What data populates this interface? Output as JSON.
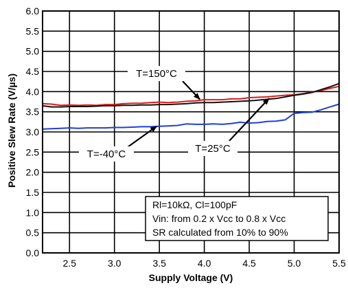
{
  "chart_data": {
    "type": "line",
    "title": "",
    "xlabel": "Supply Voltage (V)",
    "ylabel": "Positive Slew Rate (V/µs)",
    "xlim": [
      2.2,
      5.5
    ],
    "ylim": [
      0.0,
      6.0
    ],
    "grid": true,
    "x_ticks": [
      2.5,
      3.0,
      3.5,
      4.0,
      4.5,
      5.0,
      5.5
    ],
    "x_tick_labels": [
      "2.5",
      "3.0",
      "3.5",
      "4.0",
      "4.5",
      "5.0",
      "5.5"
    ],
    "y_ticks": [
      0.0,
      0.5,
      1.0,
      1.5,
      2.0,
      2.5,
      3.0,
      3.5,
      4.0,
      4.5,
      5.0,
      5.5,
      6.0
    ],
    "y_tick_labels": [
      "0.0",
      "0.5",
      "1.0",
      "1.5",
      "2.0",
      "2.5",
      "3.0",
      "3.5",
      "4.0",
      "4.5",
      "5.0",
      "5.5",
      "6.0"
    ],
    "series": [
      {
        "name": "T=150°C",
        "color": "#e0191b",
        "x": [
          2.2,
          2.3,
          2.4,
          2.5,
          2.6,
          2.7,
          2.8,
          2.9,
          3.0,
          3.1,
          3.2,
          3.3,
          3.4,
          3.5,
          3.6,
          3.7,
          3.8,
          3.9,
          4.0,
          4.1,
          4.2,
          4.3,
          4.4,
          4.5,
          4.6,
          4.7,
          4.8,
          4.9,
          5.0,
          5.1,
          5.2,
          5.3,
          5.4,
          5.5
        ],
        "y": [
          3.7,
          3.69,
          3.66,
          3.67,
          3.66,
          3.67,
          3.66,
          3.68,
          3.68,
          3.7,
          3.71,
          3.71,
          3.73,
          3.74,
          3.73,
          3.74,
          3.76,
          3.77,
          3.8,
          3.8,
          3.8,
          3.82,
          3.82,
          3.85,
          3.86,
          3.87,
          3.89,
          3.91,
          3.92,
          3.95,
          3.99,
          4.03,
          4.08,
          4.13
        ]
      },
      {
        "name": "T=25°C",
        "color": "#111111",
        "x": [
          2.2,
          2.3,
          2.4,
          2.5,
          2.6,
          2.7,
          2.8,
          2.9,
          3.0,
          3.1,
          3.2,
          3.3,
          3.4,
          3.5,
          3.6,
          3.7,
          3.8,
          3.9,
          4.0,
          4.1,
          4.2,
          4.3,
          4.4,
          4.5,
          4.6,
          4.7,
          4.8,
          4.9,
          5.0,
          5.1,
          5.2,
          5.3,
          5.4,
          5.5
        ],
        "y": [
          3.65,
          3.62,
          3.62,
          3.63,
          3.63,
          3.63,
          3.64,
          3.65,
          3.65,
          3.66,
          3.66,
          3.67,
          3.67,
          3.68,
          3.68,
          3.69,
          3.7,
          3.72,
          3.73,
          3.73,
          3.74,
          3.75,
          3.76,
          3.77,
          3.79,
          3.81,
          3.83,
          3.87,
          3.91,
          3.94,
          3.98,
          4.05,
          4.12,
          4.2
        ]
      },
      {
        "name": "T=-40°C",
        "color": "#1e3fd6",
        "x": [
          2.2,
          2.3,
          2.4,
          2.5,
          2.6,
          2.7,
          2.8,
          2.9,
          3.0,
          3.1,
          3.2,
          3.3,
          3.4,
          3.5,
          3.6,
          3.7,
          3.8,
          3.9,
          4.0,
          4.1,
          4.2,
          4.3,
          4.4,
          4.5,
          4.6,
          4.7,
          4.8,
          4.9,
          5.0,
          5.1,
          5.2,
          5.3,
          5.4,
          5.5
        ],
        "y": [
          3.07,
          3.08,
          3.09,
          3.1,
          3.09,
          3.1,
          3.1,
          3.1,
          3.11,
          3.11,
          3.12,
          3.13,
          3.13,
          3.14,
          3.15,
          3.16,
          3.2,
          3.19,
          3.19,
          3.2,
          3.19,
          3.21,
          3.24,
          3.22,
          3.23,
          3.26,
          3.27,
          3.3,
          3.46,
          3.48,
          3.49,
          3.55,
          3.62,
          3.69
        ]
      }
    ],
    "annotations": [
      {
        "text": "T=150°C",
        "series": "T=150°C",
        "point": [
          3.95,
          3.81
        ]
      },
      {
        "text": "T=-40°C",
        "series": "T=-40°C",
        "point": [
          3.47,
          3.14
        ]
      },
      {
        "text": "T=25°C",
        "series": "T=25°C",
        "point": [
          4.72,
          3.83
        ]
      }
    ],
    "note_lines": [
      "Rl=10kΩ, Cl=100pF",
      "Vin: from 0.2 x Vcc to 0.8 x Vcc",
      "SR calculated from 10% to 90%"
    ]
  }
}
